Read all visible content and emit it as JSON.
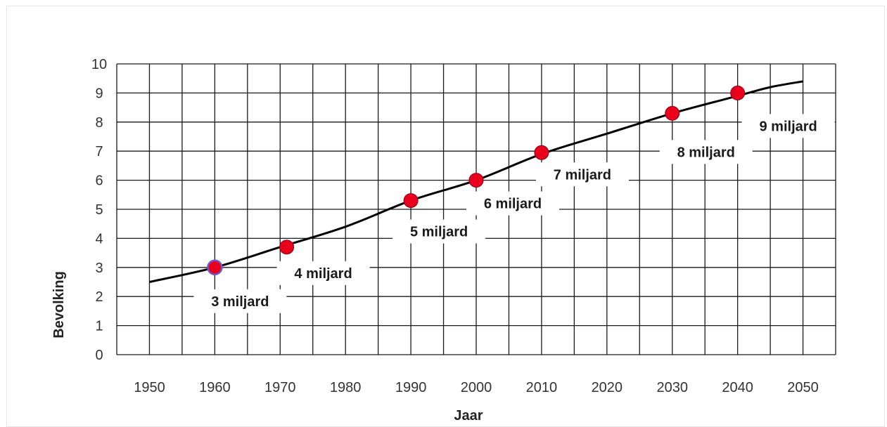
{
  "chart_data": {
    "type": "line",
    "title": "",
    "xlabel": "Jaar",
    "ylabel": "Bevolking",
    "x_ticks": [
      1950,
      1960,
      1970,
      1980,
      1990,
      2000,
      2010,
      2020,
      2030,
      2040,
      2050
    ],
    "y_ticks": [
      0,
      1,
      2,
      3,
      4,
      5,
      6,
      7,
      8,
      9,
      10
    ],
    "xlim": [
      1945,
      2055
    ],
    "ylim": [
      0,
      10
    ],
    "grid": true,
    "series": [
      {
        "color": "#000000",
        "x": [
          1950,
          1960,
          1970,
          1980,
          1990,
          2000,
          2010,
          2020,
          2030,
          2040,
          2045,
          2050
        ],
        "values": [
          2.5,
          3.0,
          3.7,
          4.4,
          5.3,
          6.0,
          6.9,
          7.6,
          8.3,
          8.9,
          9.2,
          9.4
        ]
      }
    ],
    "markers": [
      {
        "x": 1960,
        "y": 3.0,
        "label": "3 miljard",
        "color": "#e8001c"
      },
      {
        "x": 1971,
        "y": 3.7,
        "label": "4 miljard",
        "color": "#e8001c"
      },
      {
        "x": 1990,
        "y": 5.3,
        "label": "5 miljard",
        "color": "#e8001c"
      },
      {
        "x": 2000,
        "y": 6.0,
        "label": "6 miljard",
        "color": "#e8001c"
      },
      {
        "x": 2010,
        "y": 6.95,
        "label": "7 miljard",
        "color": "#e8001c"
      },
      {
        "x": 2030,
        "y": 8.3,
        "label": "8 miljard",
        "color": "#e8001c"
      },
      {
        "x": 2040,
        "y": 9.0,
        "label": "9 miljard",
        "color": "#e8001c"
      }
    ]
  }
}
